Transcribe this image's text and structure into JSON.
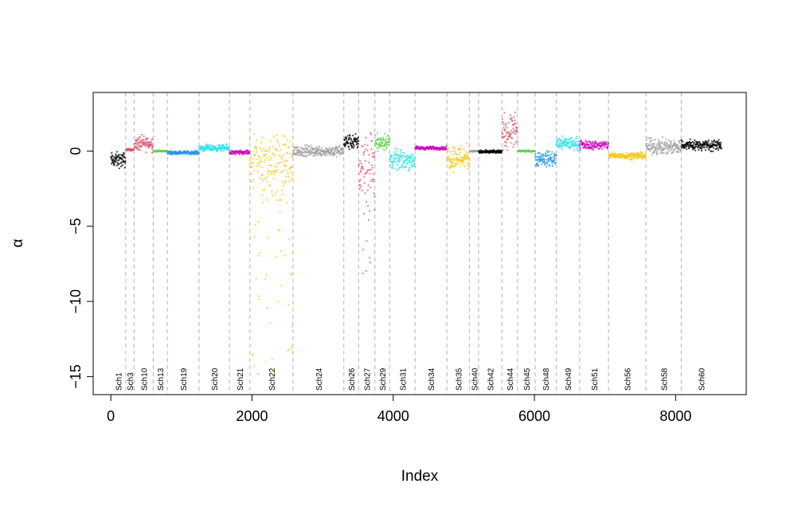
{
  "chart_data": {
    "type": "scatter",
    "title": "",
    "xlabel": "Index",
    "ylabel": "α",
    "xlim": [
      -250,
      9000
    ],
    "ylim": [
      -16.2,
      3.9
    ],
    "x_ticks": [
      0,
      2000,
      4000,
      6000,
      8000
    ],
    "x_tick_labels": [
      "0",
      "2000",
      "4000",
      "6000",
      "8000"
    ],
    "y_ticks": [
      -15,
      -10,
      -5,
      0
    ],
    "y_tick_labels": [
      "−15",
      "−10",
      "−5",
      "0"
    ],
    "grid": false,
    "segment_boundaries": [
      210,
      330,
      600,
      800,
      1250,
      1680,
      1970,
      2580,
      3300,
      3510,
      3740,
      3950,
      4310,
      4760,
      5080,
      5210,
      5540,
      5760,
      6010,
      6310,
      6640,
      7050,
      7580,
      8080
    ],
    "segments": [
      {
        "label": "Sch1",
        "x_start": 0,
        "x_end": 210,
        "color": "#000000",
        "mean": -0.6,
        "spread": 0.35
      },
      {
        "label": "Sch3",
        "x_start": 210,
        "x_end": 330,
        "color": "#DF536B",
        "mean": 0.1,
        "spread": 0.05
      },
      {
        "label": "Sch10",
        "x_start": 330,
        "x_end": 600,
        "color": "#DF536B",
        "mean": 0.5,
        "spread": 0.35
      },
      {
        "label": "Sch13",
        "x_start": 600,
        "x_end": 800,
        "color": "#61D04F",
        "mean": 0.0,
        "spread": 0.04
      },
      {
        "label": "Sch19",
        "x_start": 800,
        "x_end": 1250,
        "color": "#2297E6",
        "mean": -0.1,
        "spread": 0.08
      },
      {
        "label": "Sch20",
        "x_start": 1250,
        "x_end": 1680,
        "color": "#28E2E5",
        "mean": 0.2,
        "spread": 0.15
      },
      {
        "label": "Sch21",
        "x_start": 1680,
        "x_end": 1970,
        "color": "#CD0BBC",
        "mean": -0.1,
        "spread": 0.1
      },
      {
        "label": "Sch22",
        "x_start": 1970,
        "x_end": 2580,
        "color": "#F5C710",
        "mean": -0.8,
        "spread": 1.4,
        "min": -15.3
      },
      {
        "label": "Sch24",
        "x_start": 2580,
        "x_end": 3300,
        "color": "#9E9E9E",
        "mean": 0.0,
        "spread": 0.25
      },
      {
        "label": "Sch26",
        "x_start": 3300,
        "x_end": 3510,
        "color": "#000000",
        "mean": 0.6,
        "spread": 0.35
      },
      {
        "label": "Sch27",
        "x_start": 3510,
        "x_end": 3740,
        "color": "#DF536B",
        "mean": -1.0,
        "spread": 1.6,
        "min": -8.3
      },
      {
        "label": "Sch29",
        "x_start": 3740,
        "x_end": 3950,
        "color": "#61D04F",
        "mean": 0.6,
        "spread": 0.4
      },
      {
        "label": "Sch31",
        "x_start": 3950,
        "x_end": 4310,
        "color": "#28E2E5",
        "mean": -0.6,
        "spread": 0.45
      },
      {
        "label": "Sch34",
        "x_start": 4310,
        "x_end": 4760,
        "color": "#CD0BBC",
        "mean": 0.2,
        "spread": 0.08
      },
      {
        "label": "Sch35",
        "x_start": 4760,
        "x_end": 5080,
        "color": "#F5C710",
        "mean": -0.4,
        "spread": 0.6
      },
      {
        "label": "Sch40",
        "x_start": 5080,
        "x_end": 5210,
        "color": "#9E9E9E",
        "mean": 0.0,
        "spread": 0.04
      },
      {
        "label": "Sch42",
        "x_start": 5210,
        "x_end": 5540,
        "color": "#000000",
        "mean": -0.05,
        "spread": 0.08
      },
      {
        "label": "Sch44",
        "x_start": 5540,
        "x_end": 5760,
        "color": "#DF536B",
        "mean": 1.3,
        "spread": 0.8
      },
      {
        "label": "Sch45",
        "x_start": 5760,
        "x_end": 6010,
        "color": "#61D04F",
        "mean": 0.0,
        "spread": 0.04
      },
      {
        "label": "Sch48",
        "x_start": 6010,
        "x_end": 6310,
        "color": "#2297E6",
        "mean": -0.5,
        "spread": 0.35
      },
      {
        "label": "Sch49",
        "x_start": 6310,
        "x_end": 6640,
        "color": "#28E2E5",
        "mean": 0.5,
        "spread": 0.3
      },
      {
        "label": "Sch51",
        "x_start": 6640,
        "x_end": 7050,
        "color": "#CD0BBC",
        "mean": 0.4,
        "spread": 0.2
      },
      {
        "label": "Sch56",
        "x_start": 7050,
        "x_end": 7580,
        "color": "#F5C710",
        "mean": -0.3,
        "spread": 0.15
      },
      {
        "label": "Sch58",
        "x_start": 7580,
        "x_end": 8080,
        "color": "#9E9E9E",
        "mean": 0.3,
        "spread": 0.35
      },
      {
        "label": "Sch60",
        "x_start": 8080,
        "x_end": 8650,
        "color": "#000000",
        "mean": 0.4,
        "spread": 0.25
      }
    ]
  }
}
